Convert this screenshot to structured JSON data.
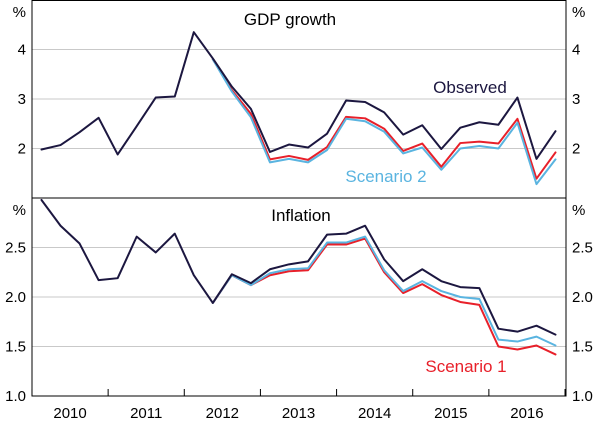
{
  "chart_data": {
    "type": "line",
    "x_labels": [
      "2010",
      "2011",
      "2012",
      "2013",
      "2014",
      "2015",
      "2016"
    ],
    "panels": [
      {
        "title": "GDP growth",
        "unit": "%",
        "ylim": [
          1,
          5
        ],
        "y_ticks": [
          2,
          3,
          4
        ],
        "y_tick_labels": [
          "2",
          "3",
          "4"
        ],
        "series": [
          {
            "name": "Observed",
            "label": "Observed",
            "color": "#1c1740",
            "values": [
              1.98,
              2.07,
              2.33,
              2.62,
              1.88,
              2.45,
              3.03,
              3.05,
              4.35,
              3.82,
              3.25,
              2.8,
              1.93,
              2.08,
              2.02,
              2.3,
              2.97,
              2.94,
              2.73,
              2.28,
              2.47,
              1.99,
              2.42,
              2.53,
              2.48,
              3.03,
              1.79,
              2.35
            ]
          },
          {
            "name": "Scenario 1",
            "label": "",
            "color": "#e8202a",
            "values": [
              null,
              null,
              null,
              null,
              null,
              null,
              null,
              null,
              null,
              3.8,
              3.18,
              2.7,
              1.78,
              1.85,
              1.77,
              2.03,
              2.64,
              2.61,
              2.4,
              1.95,
              2.1,
              1.63,
              2.11,
              2.14,
              2.1,
              2.6,
              1.39,
              1.92
            ]
          },
          {
            "name": "Scenario 2",
            "label": "Scenario 2",
            "color": "#5ab4e0",
            "values": [
              null,
              null,
              null,
              null,
              null,
              null,
              null,
              null,
              null,
              3.8,
              3.15,
              2.63,
              1.72,
              1.79,
              1.72,
              1.97,
              2.6,
              2.55,
              2.34,
              1.9,
              2.02,
              1.57,
              2.0,
              2.05,
              2.0,
              2.52,
              1.28,
              1.78
            ]
          }
        ]
      },
      {
        "title": "Inflation",
        "unit": "%",
        "ylim": [
          1.0,
          3.0
        ],
        "y_ticks": [
          1.0,
          1.5,
          2.0,
          2.5
        ],
        "y_tick_labels": [
          "1.0",
          "1.5",
          "2.0",
          "2.5"
        ],
        "series": [
          {
            "name": "Observed",
            "label": "",
            "color": "#1c1740",
            "values": [
              2.98,
              2.72,
              2.54,
              2.17,
              2.19,
              2.61,
              2.45,
              2.64,
              2.22,
              1.94,
              2.23,
              2.14,
              2.28,
              2.33,
              2.36,
              2.63,
              2.64,
              2.72,
              2.38,
              2.16,
              2.28,
              2.16,
              2.1,
              2.09,
              1.68,
              1.65,
              1.71,
              1.62
            ]
          },
          {
            "name": "Scenario 1",
            "label": "Scenario 1",
            "color": "#e8202a",
            "values": [
              null,
              null,
              null,
              null,
              null,
              null,
              null,
              null,
              null,
              1.94,
              2.22,
              2.12,
              2.22,
              2.26,
              2.27,
              2.53,
              2.53,
              2.59,
              2.25,
              2.04,
              2.13,
              2.02,
              1.95,
              1.92,
              1.5,
              1.47,
              1.51,
              1.42
            ]
          },
          {
            "name": "Scenario 2",
            "label": "",
            "color": "#5ab4e0",
            "values": [
              null,
              null,
              null,
              null,
              null,
              null,
              null,
              null,
              null,
              1.94,
              2.22,
              2.12,
              2.24,
              2.28,
              2.29,
              2.55,
              2.55,
              2.61,
              2.27,
              2.06,
              2.16,
              2.06,
              2.0,
              1.98,
              1.57,
              1.55,
              1.6,
              1.51
            ]
          }
        ]
      }
    ]
  }
}
